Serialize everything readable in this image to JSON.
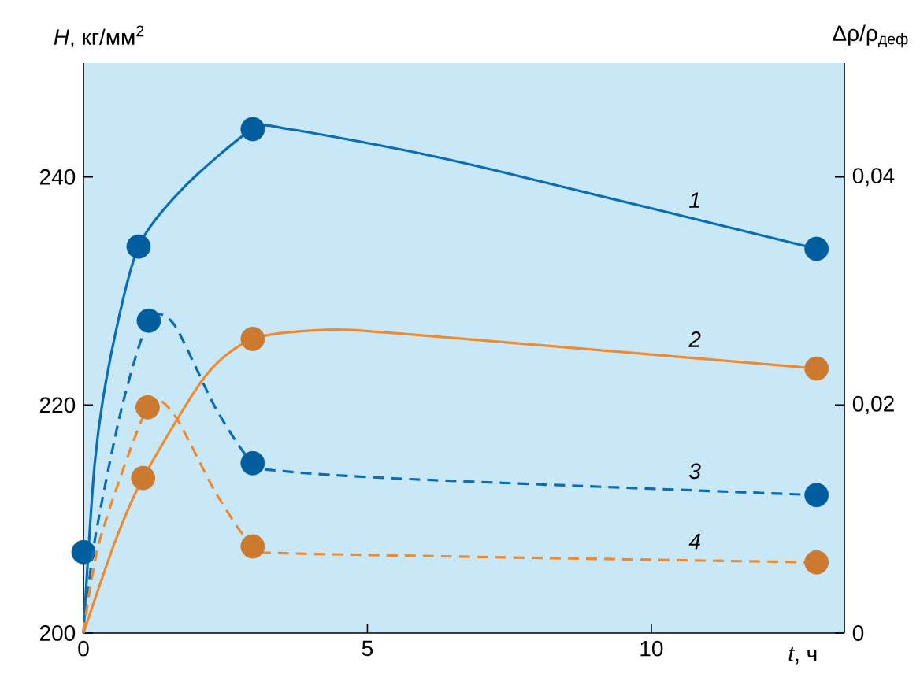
{
  "chart_data": {
    "type": "line",
    "xlabel": "*t*, ч",
    "ylabel": "*H*, кг/мм$^{2}$",
    "y2label": "Δρ/ρ$_{деф}$",
    "xlim": [
      0,
      13.4
    ],
    "xticks": [
      0,
      5,
      10
    ],
    "ylim": [
      200,
      250
    ],
    "yticks": [
      200,
      220,
      240
    ],
    "y2lim": [
      0,
      0.05
    ],
    "y2ticks": [
      {
        "value": 0,
        "label": "0"
      },
      {
        "value": 0.02,
        "label": "0,02"
      },
      {
        "value": 0.04,
        "label": "0,04"
      }
    ],
    "grid": false,
    "series": [
      {
        "name": "1",
        "color": "#0a6db5",
        "marker": "none",
        "line_style": "solid",
        "x": [
          0,
          0.2,
          0.48,
          0.97,
          1.77,
          2.98,
          3.62,
          5.6,
          7.32,
          12.91
        ],
        "values": [
          200,
          215,
          224.3,
          233.9,
          239.1,
          244.2,
          244.2,
          242.4,
          240.5,
          233.7
        ]
      },
      {
        "name": "2",
        "color": "#f08a30",
        "marker": "none",
        "line_style": "solid",
        "x": [
          0,
          0.57,
          1.05,
          2.14,
          2.98,
          4.27,
          5.75,
          12.91
        ],
        "values": [
          200,
          208.2,
          213.6,
          222.5,
          225.8,
          226.6,
          226.2,
          223.2
        ]
      },
      {
        "name": "3",
        "axis": "y2",
        "color": "#0a6db5",
        "marker": "none",
        "line_style": "dashed",
        "x": [
          0,
          0.2,
          0.67,
          1.15,
          1.59,
          2.33,
          2.98,
          3.53,
          5.75,
          12.91
        ],
        "values": [
          0,
          0.0082,
          0.0197,
          0.0274,
          0.0271,
          0.0197,
          0.0149,
          0.0142,
          0.0135,
          0.0121
        ]
      },
      {
        "name": "4",
        "axis": "y2",
        "color": "#f08a30",
        "marker": "none",
        "line_style": "dashed",
        "x": [
          0,
          0.29,
          1.13,
          1.59,
          2.33,
          2.98,
          3.53,
          12.91
        ],
        "values": [
          0,
          0.0082,
          0.0198,
          0.0192,
          0.0123,
          0.0076,
          0.007,
          0.0062
        ]
      },
      {
        "type": "scatter",
        "color": "#005e9e",
        "marker": "circle",
        "x": [
          0,
          0.97,
          2.98,
          12.91
        ],
        "values": [
          207.1,
          233.9,
          244.2,
          233.7
        ]
      },
      {
        "type": "scatter",
        "color": "#cc7a30",
        "marker": "circle",
        "x": [
          1.05,
          2.98,
          12.91
        ],
        "values": [
          213.6,
          225.8,
          223.2
        ]
      },
      {
        "type": "scatter",
        "axis": "y2",
        "color": "#005e9e",
        "marker": "circle",
        "x": [
          1.15,
          2.98,
          12.91
        ],
        "values": [
          0.0274,
          0.0149,
          0.0121
        ]
      },
      {
        "type": "scatter",
        "axis": "y2",
        "color": "#cc7a30",
        "marker": "circle",
        "x": [
          1.13,
          2.98,
          12.91
        ],
        "values": [
          0.0198,
          0.0076,
          0.0062
        ]
      }
    ]
  }
}
